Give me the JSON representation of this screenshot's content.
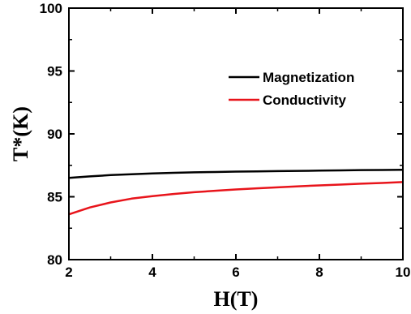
{
  "chart_data": {
    "type": "line",
    "xlabel": "H(T)",
    "ylabel": "T*(K)",
    "xlim": [
      2,
      10
    ],
    "ylim": [
      80,
      100
    ],
    "x_ticks": [
      2,
      4,
      6,
      8,
      10
    ],
    "y_ticks": [
      80,
      85,
      90,
      95,
      100
    ],
    "x_tick_labels": [
      "2",
      "4",
      "6",
      "8",
      "10"
    ],
    "y_tick_labels": [
      "80",
      "85",
      "90",
      "95",
      "100"
    ],
    "grid": false,
    "legend_position": "top-right",
    "series": [
      {
        "name": "Magnetization",
        "color": "#000000",
        "x": [
          2,
          2.5,
          3,
          3.5,
          4,
          4.5,
          5,
          5.5,
          6,
          6.5,
          7,
          7.5,
          8,
          8.5,
          9,
          9.5,
          10
        ],
        "y": [
          86.5,
          86.62,
          86.72,
          86.79,
          86.85,
          86.9,
          86.94,
          86.97,
          87.0,
          87.02,
          87.04,
          87.06,
          87.08,
          87.1,
          87.12,
          87.13,
          87.15
        ]
      },
      {
        "name": "Conductivity",
        "color": "#e8141b",
        "x": [
          2,
          2.5,
          3,
          3.5,
          4,
          4.5,
          5,
          5.5,
          6,
          6.5,
          7,
          7.5,
          8,
          8.5,
          9,
          9.5,
          10
        ],
        "y": [
          83.6,
          84.15,
          84.55,
          84.85,
          85.05,
          85.22,
          85.36,
          85.48,
          85.58,
          85.67,
          85.75,
          85.83,
          85.9,
          85.97,
          86.04,
          86.1,
          86.17
        ]
      }
    ]
  }
}
